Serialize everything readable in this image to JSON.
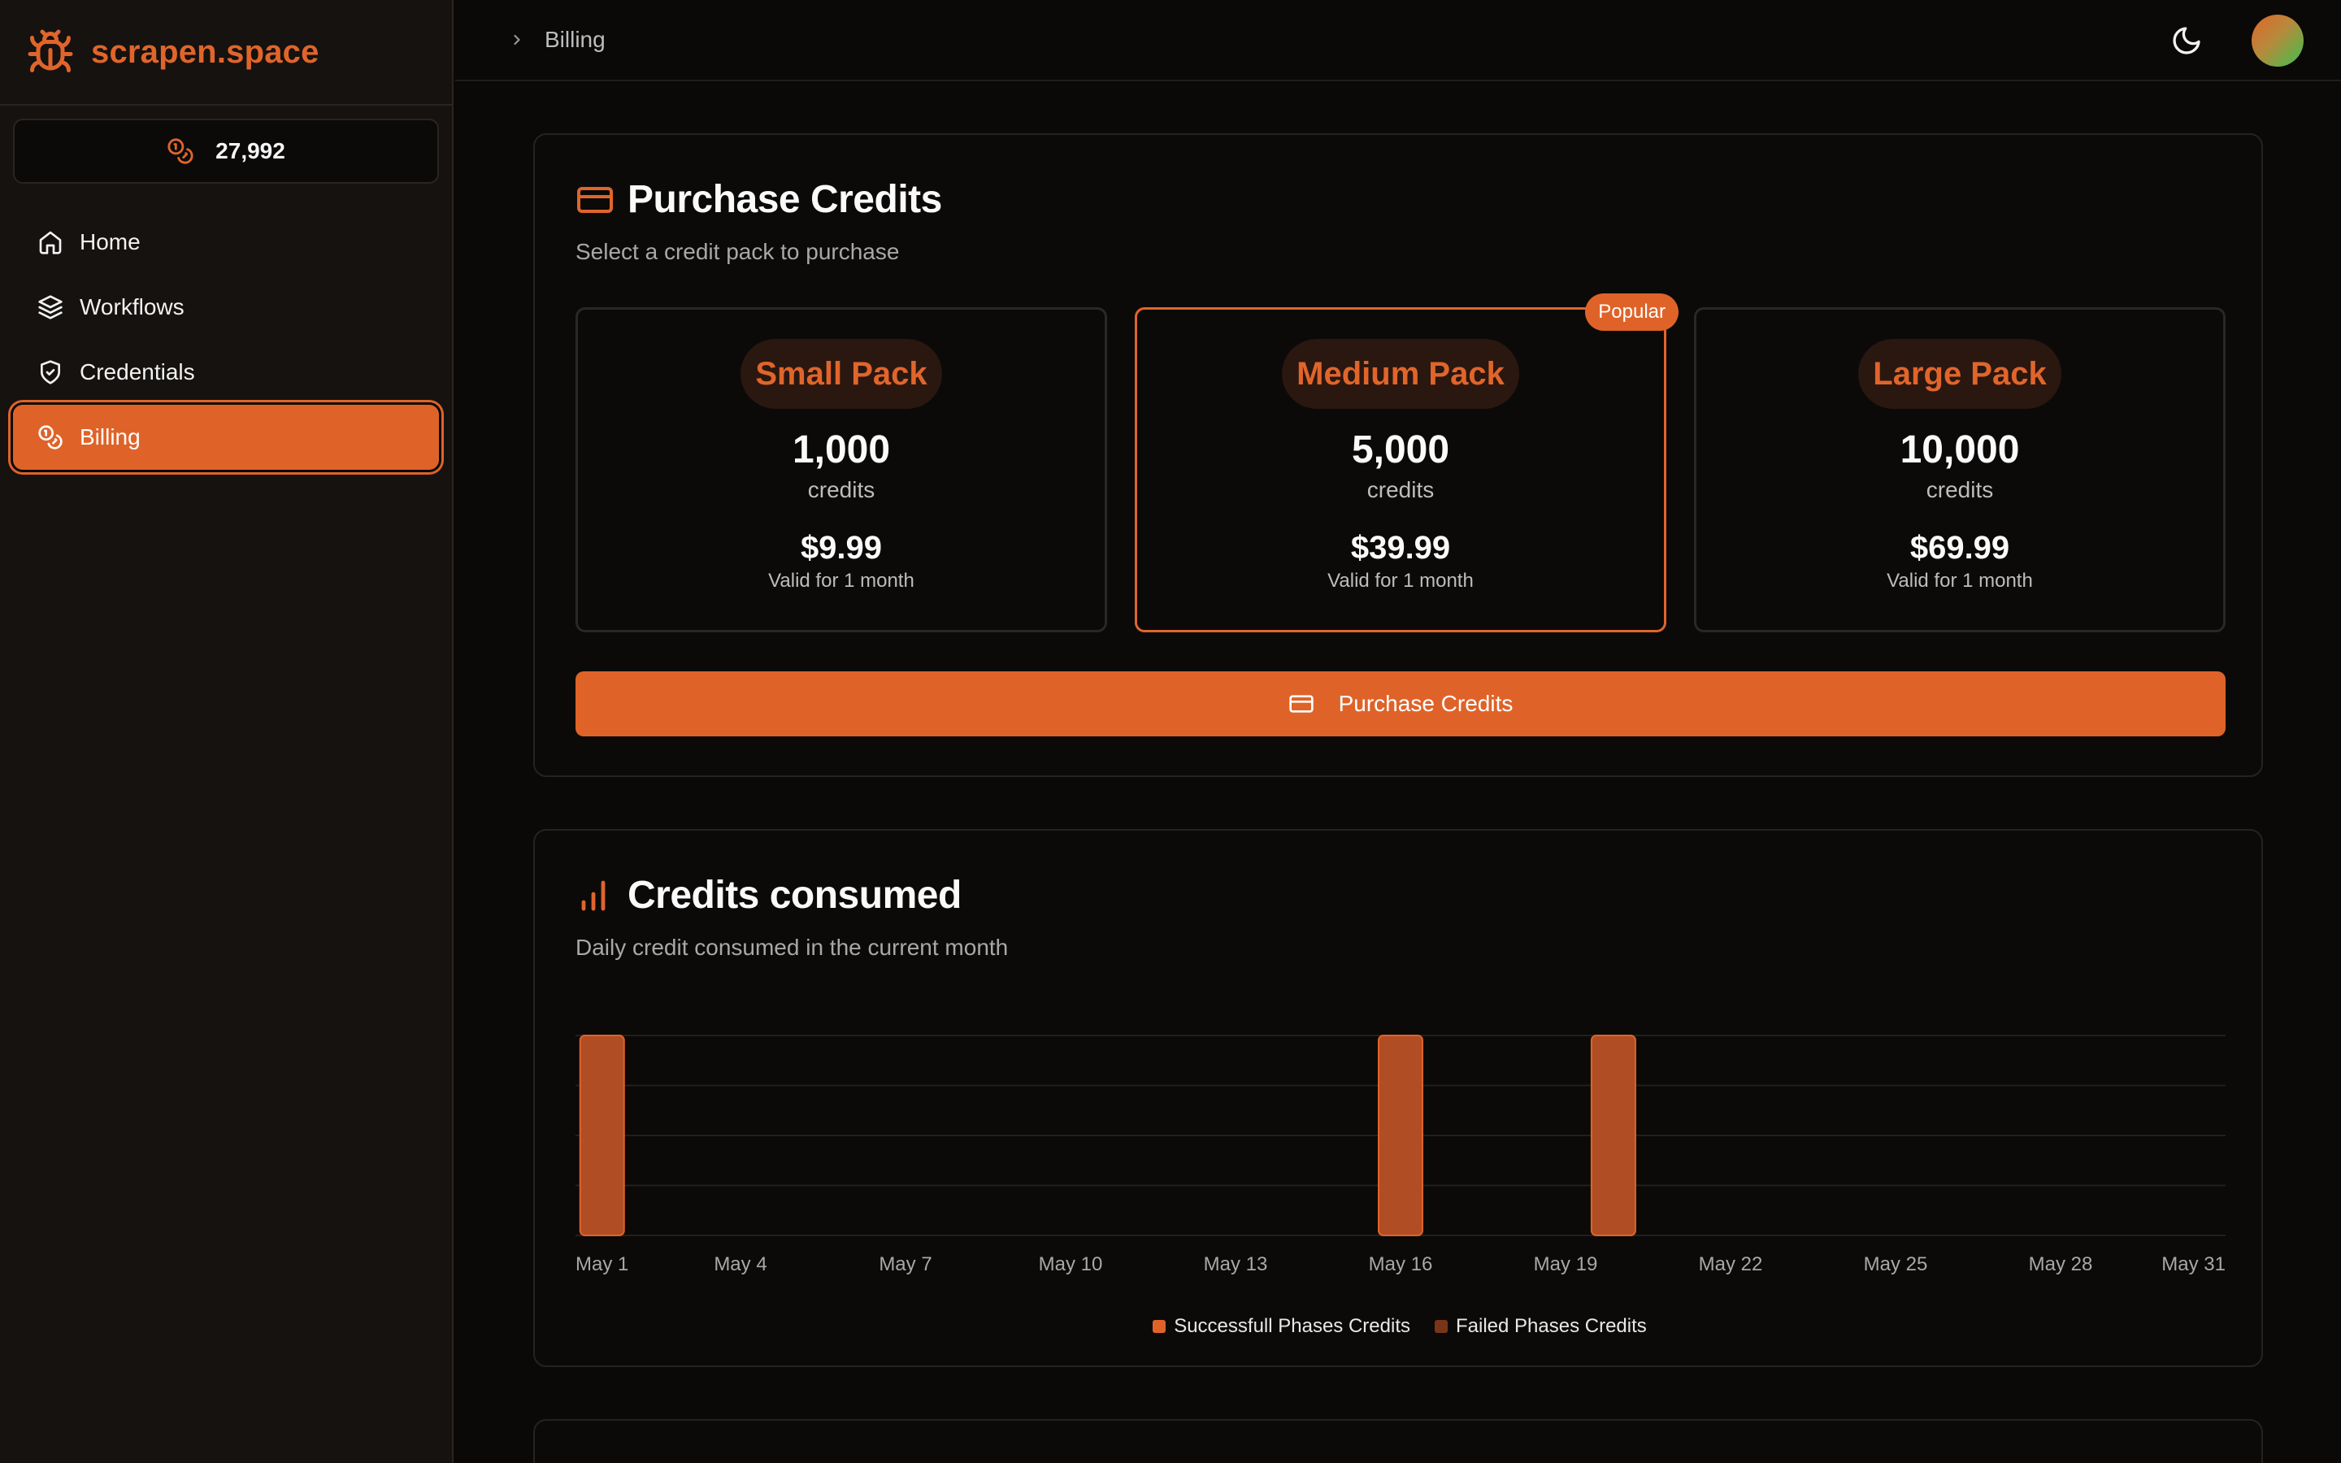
{
  "app": {
    "name": "scrapen.space",
    "balance": "27,992"
  },
  "sidebar": {
    "items": [
      {
        "label": "Home",
        "icon": "home-icon"
      },
      {
        "label": "Workflows",
        "icon": "layers-icon"
      },
      {
        "label": "Credentials",
        "icon": "shield-icon"
      },
      {
        "label": "Billing",
        "icon": "coins-icon",
        "active": true
      }
    ]
  },
  "header": {
    "breadcrumb": "Billing"
  },
  "purchase": {
    "title": "Purchase Credits",
    "subtitle": "Select a credit pack to purchase",
    "packs": [
      {
        "name": "Small Pack",
        "credits": "1,000",
        "unit": "credits",
        "price": "$9.99",
        "validity": "Valid for 1 month"
      },
      {
        "name": "Medium Pack",
        "credits": "5,000",
        "unit": "credits",
        "price": "$39.99",
        "validity": "Valid for 1 month",
        "badge": "Popular",
        "selected": true
      },
      {
        "name": "Large Pack",
        "credits": "10,000",
        "unit": "credits",
        "price": "$69.99",
        "validity": "Valid for 1 month"
      }
    ],
    "button_label": "Purchase Credits"
  },
  "consumption": {
    "title": "Credits consumed",
    "subtitle": "Daily credit consumed in the current month"
  },
  "colors": {
    "accent": "#df6329",
    "bar_success": "#b04d24",
    "bar_failed": "#6b3018"
  },
  "chart_data": {
    "type": "bar",
    "stacked": true,
    "x": [
      "May 1",
      "May 2",
      "May 3",
      "May 4",
      "May 5",
      "May 6",
      "May 7",
      "May 8",
      "May 9",
      "May 10",
      "May 11",
      "May 12",
      "May 13",
      "May 14",
      "May 15",
      "May 16",
      "May 17",
      "May 18",
      "May 19",
      "May 20",
      "May 21",
      "May 22",
      "May 23",
      "May 24",
      "May 25",
      "May 26",
      "May 27",
      "May 28",
      "May 29",
      "May 30",
      "May 31"
    ],
    "tick_labels": [
      "May 1",
      "May 4",
      "May 7",
      "May 10",
      "May 13",
      "May 16",
      "May 19",
      "May 22",
      "May 25",
      "May 28",
      "May 31"
    ],
    "series": [
      {
        "name": "Successfull Phases Credits",
        "values": [
          4,
          0,
          0,
          0,
          0,
          0,
          0,
          0,
          0,
          0,
          0,
          0,
          0,
          0,
          0,
          4,
          0,
          0,
          0,
          4,
          0,
          0,
          0,
          0,
          0,
          0,
          0,
          0,
          0,
          0,
          0
        ]
      },
      {
        "name": "Failed Phases Credits",
        "values": [
          0,
          0,
          0,
          0,
          0,
          0,
          0,
          0,
          0,
          0,
          0,
          0,
          0,
          0,
          0,
          0,
          0,
          0,
          0,
          0,
          0,
          0,
          0,
          0,
          0,
          0,
          0,
          0,
          0,
          0,
          0
        ]
      }
    ],
    "ylim": [
      0,
      4
    ],
    "grid": true,
    "legend": "bottom-center"
  }
}
